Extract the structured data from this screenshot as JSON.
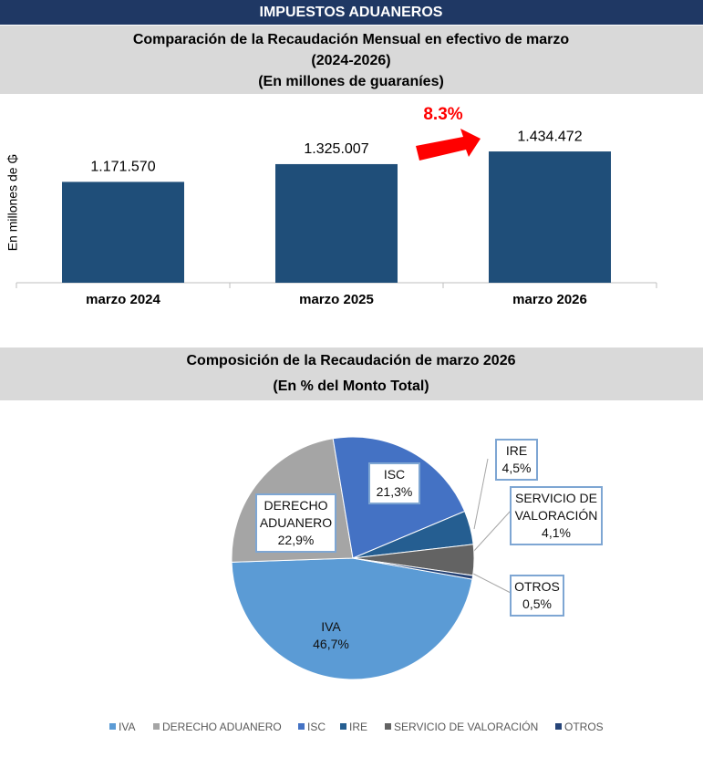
{
  "header": "IMPUESTOS ADUANEROS",
  "chart_data": [
    {
      "type": "bar",
      "title": "Comparación de la Recaudación Mensual en efectivo de marzo",
      "subtitle": [
        "(2024-2026)",
        "(En millones de guaraníes)"
      ],
      "y_label": "En millones de ₲",
      "categories": [
        "marzo 2024",
        "marzo 2025",
        "marzo 2026"
      ],
      "values": [
        1171570,
        1325007,
        1434472
      ],
      "value_labels": [
        "1.171.570",
        "1.325.007",
        "1.434.472"
      ],
      "annotation": "8.3%",
      "color": "#1f4e79",
      "ylim": [
        300000,
        1900000
      ]
    },
    {
      "type": "pie",
      "title": "Composición de la Recaudación de marzo 2026",
      "subtitle": "(En % del Monto Total)",
      "categories": [
        "IVA",
        "DERECHO ADUANERO",
        "ISC",
        "IRE",
        "SERVICIO DE VALORACIÓN",
        "OTROS"
      ],
      "values": [
        46.7,
        22.9,
        21.3,
        4.5,
        4.1,
        0.5
      ],
      "value_labels": [
        "46,7%",
        "22,9%",
        "21,3%",
        "4,5%",
        "4,1%",
        "0,5%"
      ],
      "colors": [
        "#5b9bd5",
        "#a5a5a5",
        "#4472c4",
        "#255e91",
        "#636363",
        "#264478"
      ]
    }
  ]
}
